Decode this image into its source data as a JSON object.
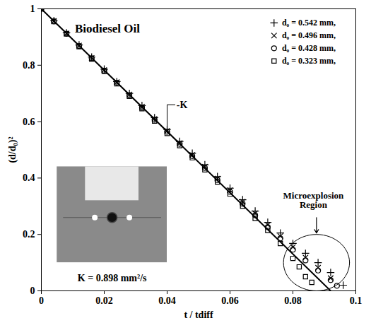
{
  "chart_data": {
    "type": "scatter",
    "title": "Biodiesel Oil",
    "x_label": "t / tdiff",
    "y_label": "(d/d₀)²",
    "xlim": [
      0,
      0.1
    ],
    "ylim": [
      0,
      1
    ],
    "xticks": [
      0,
      0.02,
      0.04,
      0.06,
      0.08,
      0.1
    ],
    "yticks": [
      0,
      0.2,
      0.4,
      0.6,
      0.8,
      1
    ],
    "grid": false,
    "legend": "upper right",
    "series": [
      {
        "name": "d₀ = 0.542 mm,",
        "color": "#000000",
        "marker": "plus",
        "x": [
          0,
          0.004,
          0.008,
          0.012,
          0.016,
          0.02,
          0.024,
          0.028,
          0.032,
          0.036,
          0.04,
          0.044,
          0.048,
          0.052,
          0.056,
          0.06,
          0.064,
          0.068,
          0.072,
          0.076,
          0.08,
          0.084,
          0.088,
          0.092,
          0.096
        ],
        "values": [
          1.0,
          0.958,
          0.915,
          0.872,
          0.829,
          0.786,
          0.742,
          0.7,
          0.657,
          0.614,
          0.572,
          0.53,
          0.488,
          0.447,
          0.405,
          0.364,
          0.323,
          0.283,
          0.243,
          0.205,
          0.168,
          0.133,
          0.1,
          0.065,
          0.02
        ]
      },
      {
        "name": "d₀ = 0.496 mm,",
        "color": "#000000",
        "marker": "times",
        "x": [
          0,
          0.004,
          0.008,
          0.012,
          0.016,
          0.02,
          0.024,
          0.028,
          0.032,
          0.036,
          0.04,
          0.044,
          0.048,
          0.052,
          0.056,
          0.06,
          0.064,
          0.068,
          0.072,
          0.076,
          0.08,
          0.084,
          0.088,
          0.092
        ],
        "values": [
          1.0,
          0.957,
          0.913,
          0.87,
          0.826,
          0.783,
          0.74,
          0.696,
          0.653,
          0.61,
          0.567,
          0.524,
          0.482,
          0.44,
          0.398,
          0.357,
          0.316,
          0.275,
          0.234,
          0.194,
          0.155,
          0.118,
          0.082,
          0.045
        ]
      },
      {
        "name": "d₀ = 0.428 mm,",
        "color": "#000000",
        "marker": "circle",
        "x": [
          0,
          0.004,
          0.008,
          0.012,
          0.016,
          0.02,
          0.024,
          0.028,
          0.032,
          0.036,
          0.04,
          0.044,
          0.048,
          0.052,
          0.056,
          0.06,
          0.064,
          0.068,
          0.072,
          0.076,
          0.08,
          0.084,
          0.088,
          0.092,
          0.094
        ],
        "values": [
          1.0,
          0.956,
          0.912,
          0.868,
          0.825,
          0.781,
          0.738,
          0.694,
          0.65,
          0.607,
          0.564,
          0.521,
          0.478,
          0.436,
          0.393,
          0.351,
          0.309,
          0.268,
          0.226,
          0.186,
          0.146,
          0.108,
          0.072,
          0.038,
          0.018
        ]
      },
      {
        "name": "d₀ = 0.323 mm,",
        "color": "#000000",
        "marker": "square",
        "x": [
          0,
          0.004,
          0.008,
          0.012,
          0.016,
          0.02,
          0.024,
          0.028,
          0.032,
          0.036,
          0.04,
          0.044,
          0.048,
          0.052,
          0.056,
          0.06,
          0.064,
          0.068,
          0.072,
          0.076,
          0.08,
          0.082,
          0.084,
          0.086
        ],
        "values": [
          1.0,
          0.955,
          0.911,
          0.866,
          0.822,
          0.778,
          0.734,
          0.69,
          0.646,
          0.602,
          0.558,
          0.515,
          0.472,
          0.429,
          0.386,
          0.343,
          0.3,
          0.257,
          0.214,
          0.168,
          0.115,
          0.085,
          0.05,
          0.03
        ]
      }
    ],
    "fit_line": {
      "label": "-K",
      "color": "#000000",
      "line_style": "solid",
      "x": [
        0,
        0.092
      ],
      "values": [
        1,
        0
      ]
    },
    "annotations": [
      "Microexplosion Region",
      "K = 0.898 mm²/s"
    ]
  }
}
